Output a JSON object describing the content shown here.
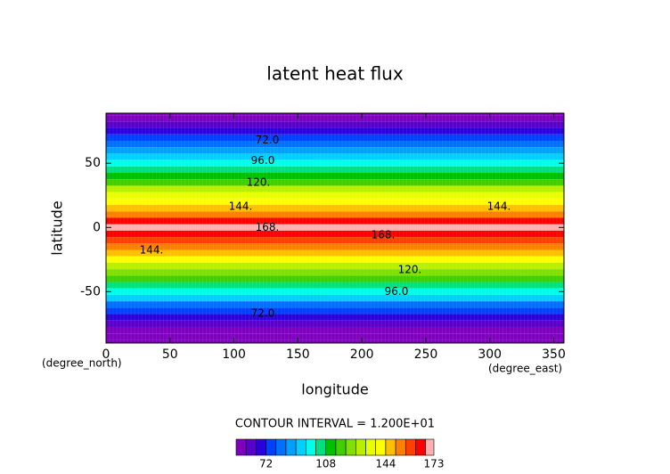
{
  "chart_data": {
    "type": "contour",
    "title": "latent heat flux",
    "xlabel": "longitude",
    "ylabel": "latitude",
    "xunit": "(degree_east)",
    "yunit": "(degree_north)",
    "interval_text": "CONTOUR INTERVAL = 1.200E+01",
    "xlim": [
      0,
      358
    ],
    "ylim": [
      -90,
      89
    ],
    "xticks": [
      0,
      50,
      100,
      150,
      200,
      250,
      300,
      350
    ],
    "yticks": [
      -50,
      0,
      50
    ],
    "latitudes": [
      89,
      85,
      80,
      75,
      70,
      65,
      60,
      55,
      50,
      45,
      40,
      35,
      30,
      25,
      20,
      15,
      10,
      5,
      0,
      -5,
      -10,
      -15,
      -20,
      -25,
      -30,
      -35,
      -40,
      -45,
      -50,
      -55,
      -60,
      -65,
      -70,
      -75,
      -80,
      -85,
      -90
    ],
    "values": [
      56,
      58,
      62,
      68,
      74,
      80,
      87,
      93,
      99,
      105,
      112,
      119,
      126,
      133,
      140,
      147,
      155,
      163,
      169,
      166,
      160,
      152,
      145,
      138,
      130,
      122,
      114,
      106,
      98,
      90,
      82,
      75,
      68,
      62,
      58,
      56,
      55
    ],
    "contour_labels": [
      "72.0",
      "96.0",
      "120.",
      "144.",
      "144.",
      "168.",
      "168.",
      "144.",
      "120.",
      "96.0",
      "72.0"
    ],
    "levels": [
      54,
      60,
      66,
      72,
      78,
      84,
      90,
      96,
      102,
      108,
      114,
      120,
      126,
      132,
      138,
      144,
      150,
      156,
      162,
      168,
      173
    ],
    "colors": [
      "#7f00bf",
      "#5a00cc",
      "#2a00dc",
      "#0040ff",
      "#0070ff",
      "#00a0ff",
      "#00d0ff",
      "#00ffe8",
      "#00e080",
      "#00c000",
      "#40d000",
      "#80e000",
      "#b8f000",
      "#e8ff00",
      "#ffff00",
      "#ffc000",
      "#ff8000",
      "#ff4000",
      "#ff0000",
      "#ffb0b0"
    ],
    "colorbar_ticks": [
      72,
      108,
      144,
      173
    ]
  }
}
